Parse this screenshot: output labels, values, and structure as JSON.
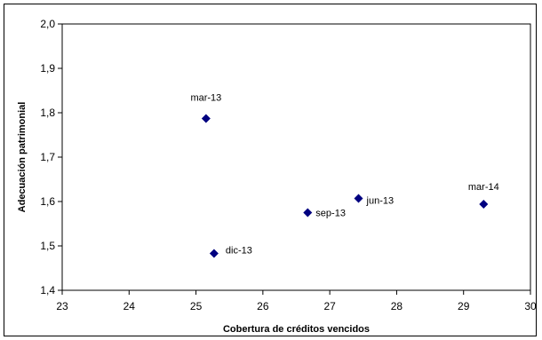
{
  "chart_data": {
    "type": "scatter",
    "title": "",
    "xlabel": "Cobertura de créditos vencidos",
    "ylabel": "Adecuación patrimonial",
    "xlim": [
      23,
      30
    ],
    "ylim": [
      1.4,
      2.0
    ],
    "x_ticks": [
      "23",
      "24",
      "25",
      "26",
      "27",
      "28",
      "29",
      "30"
    ],
    "y_ticks": [
      "2,0",
      "1,9",
      "1,8",
      "1,7",
      "1,6",
      "1,5",
      "1,4"
    ],
    "grid": false,
    "legend": "none",
    "marker_color": "#000080",
    "points": [
      {
        "label": "mar-13",
        "x": 25.15,
        "y": 1.787
      },
      {
        "label": "jun-13",
        "x": 27.43,
        "y": 1.607
      },
      {
        "label": "sep-13",
        "x": 26.67,
        "y": 1.575
      },
      {
        "label": "dic-13",
        "x": 25.27,
        "y": 1.483
      },
      {
        "label": "mar-14",
        "x": 29.3,
        "y": 1.594
      }
    ]
  }
}
